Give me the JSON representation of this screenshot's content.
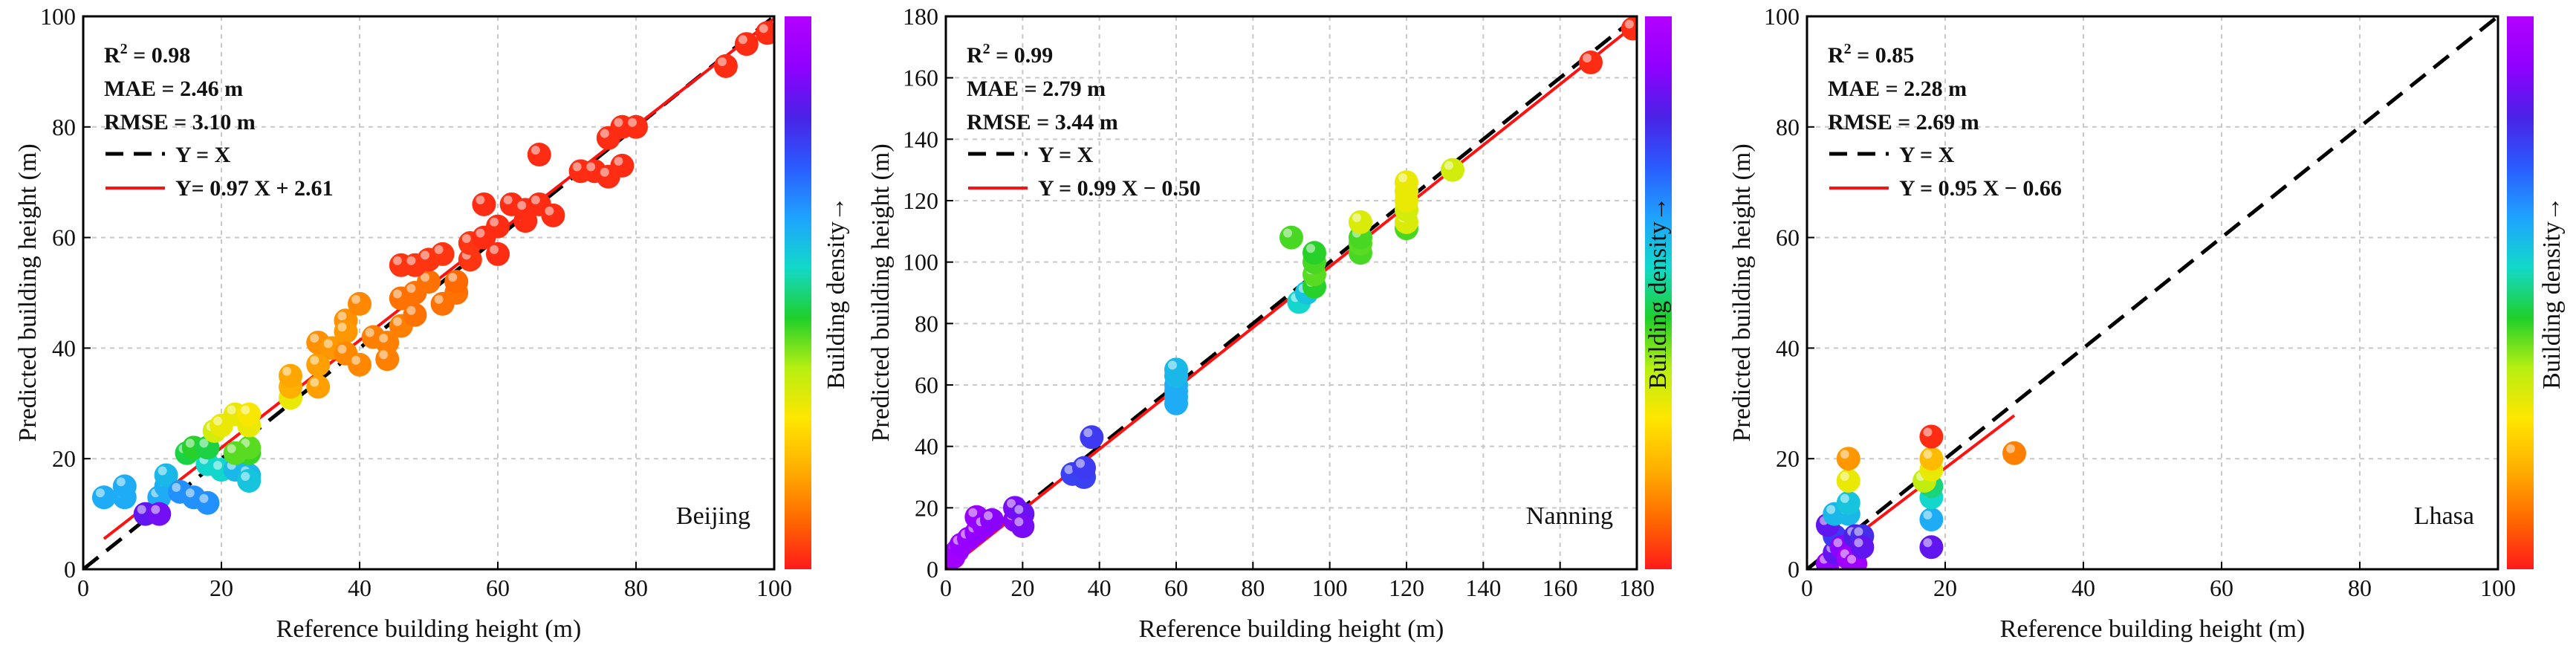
{
  "figure": {
    "colorbar_label": "Building density→",
    "colorbar_stops": [
      "#ff1a1a",
      "#ff6a00",
      "#ffb000",
      "#ffe600",
      "#b7ef12",
      "#1fcf2a",
      "#12d9c9",
      "#1fa2ff",
      "#2a5cff",
      "#4a22e6",
      "#9000ff",
      "#b400ff"
    ]
  },
  "chart_data": [
    {
      "type": "scatter",
      "name": "beijing",
      "city": "Beijing",
      "xlabel": "Reference building height (m)",
      "ylabel": "Predicted building height (m)",
      "xlim": [
        0,
        100
      ],
      "ylim": [
        0,
        100
      ],
      "xticks": [
        "0",
        "20",
        "40",
        "60",
        "80",
        "100"
      ],
      "yticks": [
        "0",
        "20",
        "40",
        "60",
        "80",
        "100"
      ],
      "grid": true,
      "stats": {
        "r2_label": "R",
        "r2_sup": "2",
        "r2_value": " = 0.98",
        "mae": "MAE = 2.46 m",
        "rmse": "RMSE = 3.10 m"
      },
      "legend": {
        "identity": "Y = X",
        "fit": "Y=  0.97 X + 2.61"
      },
      "identity_line": {
        "x": [
          0,
          100
        ],
        "y": [
          0,
          100
        ]
      },
      "fit_line": {
        "x": [
          3,
          100
        ],
        "y": [
          5.5,
          99.6
        ]
      },
      "points": [
        [
          3,
          13,
          0.62
        ],
        [
          6,
          13,
          0.62
        ],
        [
          6,
          15,
          0.62
        ],
        [
          11,
          13,
          0.62
        ],
        [
          12,
          15,
          0.62
        ],
        [
          12,
          17,
          0.6
        ],
        [
          14,
          14,
          0.66
        ],
        [
          16,
          13,
          0.66
        ],
        [
          18,
          12,
          0.66
        ],
        [
          18,
          19,
          0.55
        ],
        [
          20,
          18,
          0.55
        ],
        [
          22,
          18,
          0.6
        ],
        [
          24,
          17,
          0.6
        ],
        [
          24,
          16,
          0.58
        ],
        [
          15,
          21,
          0.47
        ],
        [
          16,
          22,
          0.45
        ],
        [
          18,
          22,
          0.47
        ],
        [
          24,
          21,
          0.44
        ],
        [
          24,
          22,
          0.42
        ],
        [
          19,
          25,
          0.33
        ],
        [
          20,
          26,
          0.3
        ],
        [
          22,
          28,
          0.3
        ],
        [
          24,
          26,
          0.3
        ],
        [
          24,
          28,
          0.28
        ],
        [
          9,
          10,
          0.85
        ],
        [
          11,
          10,
          0.87
        ],
        [
          22,
          21,
          0.42
        ],
        [
          30,
          31,
          0.3
        ],
        [
          30,
          33,
          0.18
        ],
        [
          30,
          35,
          0.17
        ],
        [
          34,
          33,
          0.16
        ],
        [
          34,
          37,
          0.16
        ],
        [
          34,
          41,
          0.14
        ],
        [
          38,
          45,
          0.14
        ],
        [
          38,
          43,
          0.15
        ],
        [
          36,
          40,
          0.15
        ],
        [
          38,
          39,
          0.13
        ],
        [
          40,
          48,
          0.13
        ],
        [
          40,
          37,
          0.13
        ],
        [
          42,
          42,
          0.12
        ],
        [
          44,
          41,
          0.12
        ],
        [
          44,
          38,
          0.12
        ],
        [
          46,
          44,
          0.12
        ],
        [
          46,
          49,
          0.1
        ],
        [
          48,
          46,
          0.1
        ],
        [
          48,
          50,
          0.1
        ],
        [
          50,
          52,
          0.1
        ],
        [
          52,
          48,
          0.1
        ],
        [
          54,
          50,
          0.1
        ],
        [
          54,
          52,
          0.09
        ],
        [
          46,
          55,
          0.03
        ],
        [
          48,
          55,
          0.03
        ],
        [
          50,
          56,
          0.03
        ],
        [
          52,
          57,
          0.03
        ],
        [
          56,
          56,
          0.03
        ],
        [
          56,
          59,
          0.03
        ],
        [
          58,
          60,
          0.02
        ],
        [
          58,
          66,
          0.02
        ],
        [
          60,
          62,
          0.02
        ],
        [
          60,
          57,
          0.02
        ],
        [
          62,
          66,
          0.02
        ],
        [
          64,
          63,
          0.02
        ],
        [
          64,
          65,
          0.02
        ],
        [
          66,
          66,
          0.02
        ],
        [
          66,
          75,
          0.02
        ],
        [
          68,
          64,
          0.02
        ],
        [
          72,
          72,
          0.02
        ],
        [
          74,
          72,
          0.02
        ],
        [
          76,
          78,
          0.02
        ],
        [
          76,
          71,
          0.02
        ],
        [
          78,
          80,
          0.02
        ],
        [
          78,
          73,
          0.02
        ],
        [
          80,
          80,
          0.02
        ],
        [
          93,
          91,
          0.02
        ],
        [
          96,
          95,
          0.02
        ],
        [
          99,
          97,
          0.02
        ]
      ]
    },
    {
      "type": "scatter",
      "name": "nanning",
      "city": "Nanning",
      "xlabel": "Reference building height (m)",
      "ylabel": "Predicted building height (m)",
      "xlim": [
        0,
        180
      ],
      "ylim": [
        0,
        180
      ],
      "xticks": [
        "0",
        "20",
        "40",
        "60",
        "80",
        "100",
        "120",
        "140",
        "160",
        "180"
      ],
      "yticks": [
        "0",
        "20",
        "40",
        "60",
        "80",
        "100",
        "120",
        "140",
        "160",
        "180"
      ],
      "grid": true,
      "stats": {
        "r2_label": "R",
        "r2_sup": "2",
        "r2_value": " = 0.99",
        "mae": "MAE = 2.79 m",
        "rmse": "RMSE = 3.44 m"
      },
      "legend": {
        "identity": "Y = X",
        "fit": "Y = 0.99 X − 0.50"
      },
      "identity_line": {
        "x": [
          0,
          180
        ],
        "y": [
          0,
          180
        ]
      },
      "fit_line": {
        "x": [
          0,
          180
        ],
        "y": [
          -0.5,
          177.7
        ]
      },
      "points": [
        [
          2,
          4,
          0.95
        ],
        [
          3,
          6,
          0.95
        ],
        [
          4,
          8,
          0.93
        ],
        [
          6,
          10,
          0.93
        ],
        [
          8,
          12,
          0.92
        ],
        [
          8,
          17,
          0.93
        ],
        [
          10,
          14,
          0.92
        ],
        [
          12,
          16,
          0.9
        ],
        [
          18,
          16,
          0.9
        ],
        [
          18,
          20,
          0.88
        ],
        [
          20,
          18,
          0.86
        ],
        [
          20,
          14,
          0.88
        ],
        [
          33,
          31,
          0.77
        ],
        [
          36,
          30,
          0.77
        ],
        [
          36,
          33,
          0.78
        ],
        [
          38,
          43,
          0.78
        ],
        [
          60,
          54,
          0.62
        ],
        [
          60,
          56,
          0.62
        ],
        [
          60,
          58,
          0.62
        ],
        [
          60,
          60,
          0.62
        ],
        [
          60,
          63,
          0.6
        ],
        [
          60,
          65,
          0.6
        ],
        [
          92,
          87,
          0.55
        ],
        [
          94,
          90,
          0.58
        ],
        [
          90,
          108,
          0.43
        ],
        [
          96,
          92,
          0.45
        ],
        [
          96,
          96,
          0.42
        ],
        [
          96,
          100,
          0.43
        ],
        [
          96,
          103,
          0.45
        ],
        [
          108,
          103,
          0.43
        ],
        [
          108,
          106,
          0.42
        ],
        [
          108,
          108,
          0.43
        ],
        [
          120,
          111,
          0.43
        ],
        [
          108,
          113,
          0.32
        ],
        [
          120,
          113,
          0.32
        ],
        [
          120,
          117,
          0.33
        ],
        [
          120,
          120,
          0.3
        ],
        [
          120,
          123,
          0.3
        ],
        [
          120,
          126,
          0.3
        ],
        [
          132,
          130,
          0.33
        ],
        [
          168,
          165,
          0.02
        ],
        [
          179,
          176,
          0.02
        ]
      ]
    },
    {
      "type": "scatter",
      "name": "lhasa",
      "city": "Lhasa",
      "xlabel": "Reference building height (m)",
      "ylabel": "Predicted building height (m)",
      "xlim": [
        0,
        100
      ],
      "ylim": [
        0,
        100
      ],
      "xticks": [
        "0",
        "20",
        "40",
        "60",
        "80",
        "100"
      ],
      "yticks": [
        "0",
        "20",
        "40",
        "60",
        "80",
        "100"
      ],
      "grid": true,
      "stats": {
        "r2_label": "R",
        "r2_sup": "2",
        "r2_value": " = 0.85",
        "mae": "MAE = 2.28 m",
        "rmse": "RMSE = 2.69 m"
      },
      "legend": {
        "identity": "Y = X",
        "fit": "Y = 0.95 X − 0.66"
      },
      "identity_line": {
        "x": [
          0,
          100
        ],
        "y": [
          0,
          100
        ]
      },
      "fit_line": {
        "x": [
          2,
          30
        ],
        "y": [
          1.2,
          27.8
        ]
      },
      "points": [
        [
          3,
          1,
          0.92
        ],
        [
          4,
          3,
          0.85
        ],
        [
          4,
          6,
          0.78
        ],
        [
          3,
          8,
          0.85
        ],
        [
          4,
          10,
          0.6
        ],
        [
          6,
          10,
          0.6
        ],
        [
          6,
          12,
          0.58
        ],
        [
          5,
          4,
          0.9
        ],
        [
          6,
          2,
          0.95
        ],
        [
          7,
          1,
          0.95
        ],
        [
          7,
          6,
          0.82
        ],
        [
          8,
          6,
          0.8
        ],
        [
          8,
          4,
          0.85
        ],
        [
          6,
          16,
          0.3
        ],
        [
          6,
          20,
          0.15
        ],
        [
          18,
          4,
          0.85
        ],
        [
          18,
          9,
          0.62
        ],
        [
          18,
          13,
          0.55
        ],
        [
          18,
          15,
          0.5
        ],
        [
          17,
          16,
          0.35
        ],
        [
          18,
          18,
          0.3
        ],
        [
          18,
          20,
          0.2
        ],
        [
          18,
          24,
          0.02
        ],
        [
          30,
          21,
          0.12
        ]
      ]
    }
  ]
}
